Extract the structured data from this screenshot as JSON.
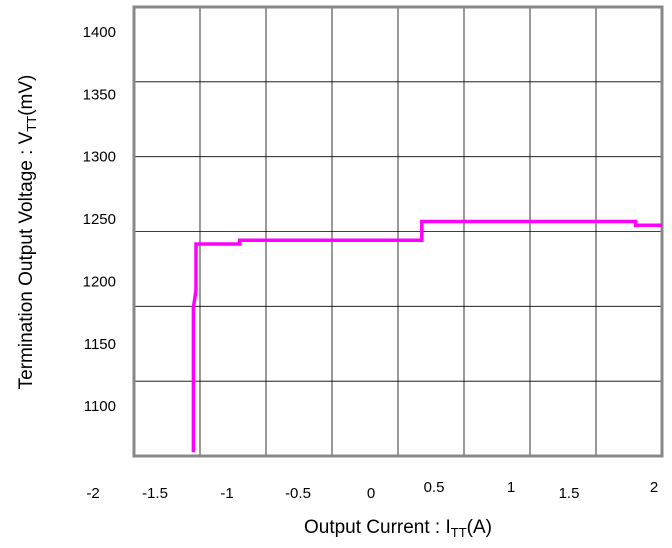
{
  "chart_data": {
    "type": "line",
    "xlabel": "Output Current : I",
    "xlabel_sub": "TT",
    "xlabel_unit": "(A)",
    "ylabel": "Termination Output Voltage : V",
    "ylabel_sub": "TT",
    "ylabel_unit": "(mV)",
    "x_tick_labels": [
      "-2",
      "-1.5",
      "-1",
      "-0.5",
      "0",
      "0.5",
      "1",
      "1.5",
      "2"
    ],
    "y_tick_labels": [
      "1100",
      "1150",
      "1200",
      "1250",
      "1300",
      "1350",
      "1400"
    ],
    "xlim": [
      -2,
      2
    ],
    "ylim": [
      1060,
      1420
    ],
    "grid": true,
    "line_color": "#ff00ff",
    "series": [
      {
        "x": [
          -1.55,
          -1.55,
          -1.53,
          -1.53,
          -1.2,
          -1.2,
          0.18,
          0.18,
          1.8,
          1.8,
          2.0
        ],
        "y": [
          1063,
          1179,
          1193,
          1230,
          1230,
          1233,
          1233,
          1248,
          1248,
          1245,
          1245
        ]
      }
    ]
  }
}
